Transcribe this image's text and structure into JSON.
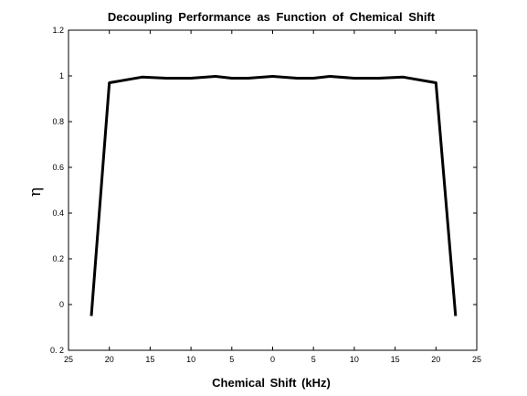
{
  "chart_data": {
    "type": "line",
    "title": "Decoupling Performance as Function of Chemical Shift",
    "xlabel": "Chemical Shift (kHz)",
    "ylabel": "η",
    "xlim": [
      -25,
      25
    ],
    "ylim": [
      -0.2,
      1.2
    ],
    "x_ticks": [
      -25,
      -20,
      -15,
      -10,
      -5,
      0,
      5,
      10,
      15,
      20,
      25
    ],
    "x_tick_labels": [
      "25",
      "20",
      "15",
      "10",
      "5",
      "0",
      "5",
      "10",
      "15",
      "20",
      "25"
    ],
    "y_ticks": [
      -0.2,
      0,
      0.2,
      0.4,
      0.6,
      0.8,
      1,
      1.2
    ],
    "y_tick_labels": [
      "0. 2",
      "0",
      "0.2",
      "0.4",
      "0.6",
      "0.8",
      "1",
      "1.2"
    ],
    "grid": false,
    "series": [
      {
        "x": [
          -22.2,
          -20,
          -16,
          -13,
          -10,
          -7,
          -5,
          -3,
          0,
          3,
          5,
          7,
          10,
          13,
          16,
          20,
          22.4
        ],
        "y": [
          -0.05,
          0.97,
          0.995,
          0.99,
          0.99,
          0.998,
          0.99,
          0.99,
          0.998,
          0.99,
          0.99,
          0.998,
          0.99,
          0.99,
          0.995,
          0.97,
          -0.05
        ]
      }
    ]
  }
}
